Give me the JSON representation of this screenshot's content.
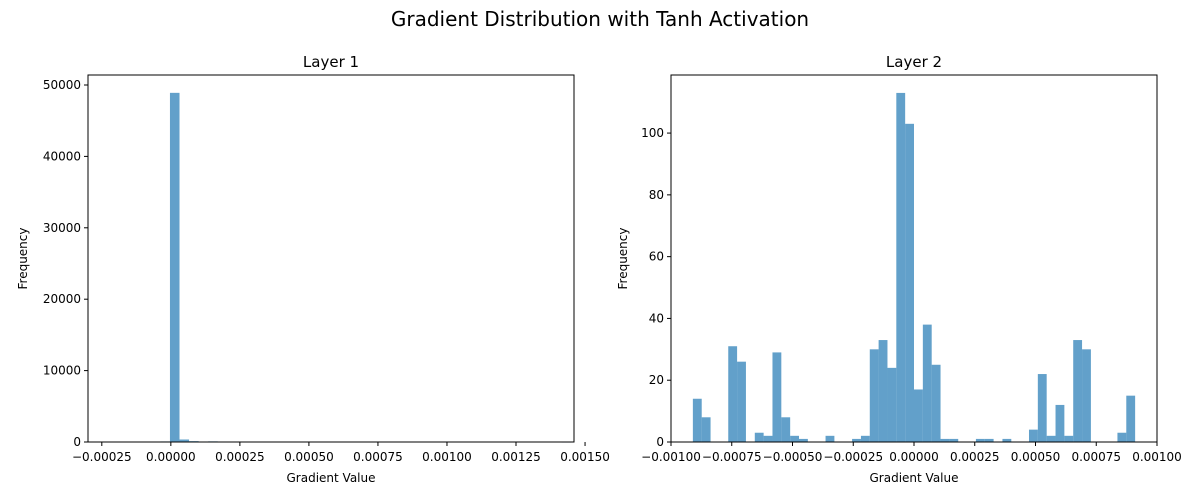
{
  "figure": {
    "suptitle": "Gradient Distribution with Tanh Activation",
    "bar_color": "#1f77b4",
    "bar_opacity": 0.7
  },
  "chart_data": [
    {
      "type": "bar",
      "title": "Layer 1",
      "xlabel": "Gradient Value",
      "ylabel": "Frequency",
      "xlim": [
        -0.0003,
        0.00146
      ],
      "ylim": [
        0,
        51400
      ],
      "xticks": [
        {
          "value": -0.00025,
          "label": "−0.00025"
        },
        {
          "value": 0.0,
          "label": "0.00000"
        },
        {
          "value": 0.00025,
          "label": "0.00025"
        },
        {
          "value": 0.0005,
          "label": "0.00050"
        },
        {
          "value": 0.00075,
          "label": "0.00075"
        },
        {
          "value": 0.001,
          "label": "0.00100"
        },
        {
          "value": 0.00125,
          "label": "0.00125"
        },
        {
          "value": 0.0015,
          "label": "0.00150"
        }
      ],
      "yticks": [
        {
          "value": 0,
          "label": "0"
        },
        {
          "value": 10000,
          "label": "10000"
        },
        {
          "value": 20000,
          "label": "20000"
        },
        {
          "value": 30000,
          "label": "30000"
        },
        {
          "value": 40000,
          "label": "40000"
        },
        {
          "value": 50000,
          "label": "50000"
        }
      ],
      "bin_start": -0.00028,
      "bin_width": 3.46e-05,
      "values": [
        60,
        40,
        50,
        60,
        30,
        40,
        30,
        80,
        48900,
        350,
        120,
        30,
        90,
        40,
        0,
        20,
        0,
        0,
        0,
        0,
        30,
        0,
        0,
        0,
        0,
        0,
        0,
        0,
        0,
        0,
        0,
        0,
        0,
        0,
        0,
        0,
        0,
        0,
        0,
        0,
        0,
        0,
        0,
        0,
        0,
        0,
        0,
        0,
        0,
        10
      ]
    },
    {
      "type": "bar",
      "title": "Layer 2",
      "xlabel": "Gradient Value",
      "ylabel": "Frequency",
      "xlim": [
        -0.001,
        0.001
      ],
      "ylim": [
        0,
        118.8
      ],
      "xticks": [
        {
          "value": -0.001,
          "label": "−0.00100"
        },
        {
          "value": -0.00075,
          "label": "−0.00075"
        },
        {
          "value": -0.0005,
          "label": "−0.00050"
        },
        {
          "value": -0.00025,
          "label": "−0.00025"
        },
        {
          "value": 0.0,
          "label": "0.00000"
        },
        {
          "value": 0.00025,
          "label": "0.00025"
        },
        {
          "value": 0.0005,
          "label": "0.00050"
        },
        {
          "value": 0.00075,
          "label": "0.00075"
        },
        {
          "value": 0.001,
          "label": "0.00100"
        }
      ],
      "yticks": [
        {
          "value": 0,
          "label": "0"
        },
        {
          "value": 20,
          "label": "20"
        },
        {
          "value": 40,
          "label": "40"
        },
        {
          "value": 60,
          "label": "60"
        },
        {
          "value": 80,
          "label": "80"
        },
        {
          "value": 100,
          "label": "100"
        }
      ],
      "bin_start": -0.00091,
      "bin_width": 3.64e-05,
      "values": [
        14,
        8,
        0,
        0,
        31,
        26,
        0,
        3,
        2,
        29,
        8,
        2,
        1,
        0,
        0,
        2,
        0,
        0,
        1,
        2,
        30,
        33,
        24,
        113,
        103,
        17,
        38,
        25,
        1,
        1,
        0,
        0,
        1,
        1,
        0,
        1,
        0,
        0,
        4,
        22,
        2,
        12,
        2,
        33,
        30,
        0,
        0,
        0,
        3,
        15
      ]
    }
  ]
}
